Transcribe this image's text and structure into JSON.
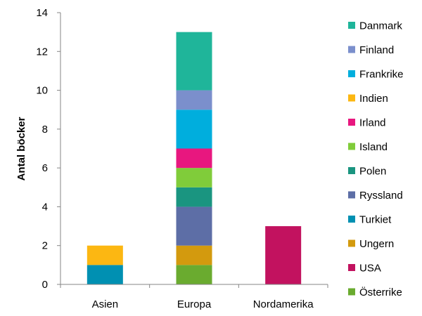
{
  "chart_data": {
    "type": "bar",
    "stacked": true,
    "ylabel": "Antal böcker",
    "xlabel": "",
    "ylim": [
      0,
      14
    ],
    "yticks": [
      0,
      2,
      4,
      6,
      8,
      10,
      12,
      14
    ],
    "grid": false,
    "legend_position": "right",
    "categories": [
      "Asien",
      "Europa",
      "Nordamerika"
    ],
    "series": [
      {
        "name": "Danmark",
        "color": "#1fb59a",
        "values": [
          0,
          3,
          0
        ]
      },
      {
        "name": "Finland",
        "color": "#7b8fcc",
        "values": [
          0,
          1,
          0
        ]
      },
      {
        "name": "Frankrike",
        "color": "#00aedd",
        "values": [
          0,
          2,
          0
        ]
      },
      {
        "name": "Indien",
        "color": "#fcb712",
        "values": [
          1,
          0,
          0
        ]
      },
      {
        "name": "Irland",
        "color": "#e8177f",
        "values": [
          0,
          1,
          0
        ]
      },
      {
        "name": "Island",
        "color": "#80cc3a",
        "values": [
          0,
          1,
          0
        ]
      },
      {
        "name": "Polen",
        "color": "#1a9580",
        "values": [
          0,
          1,
          0
        ]
      },
      {
        "name": "Ryssland",
        "color": "#5d6ea6",
        "values": [
          0,
          2,
          0
        ]
      },
      {
        "name": "Turkiet",
        "color": "#0090b2",
        "values": [
          1,
          0,
          0
        ]
      },
      {
        "name": "Ungern",
        "color": "#d39a0e",
        "values": [
          0,
          1,
          0
        ]
      },
      {
        "name": "USA",
        "color": "#c2125f",
        "values": [
          0,
          0,
          3
        ]
      },
      {
        "name": "Österrike",
        "color": "#6aab2f",
        "values": [
          0,
          1,
          0
        ]
      }
    ]
  }
}
